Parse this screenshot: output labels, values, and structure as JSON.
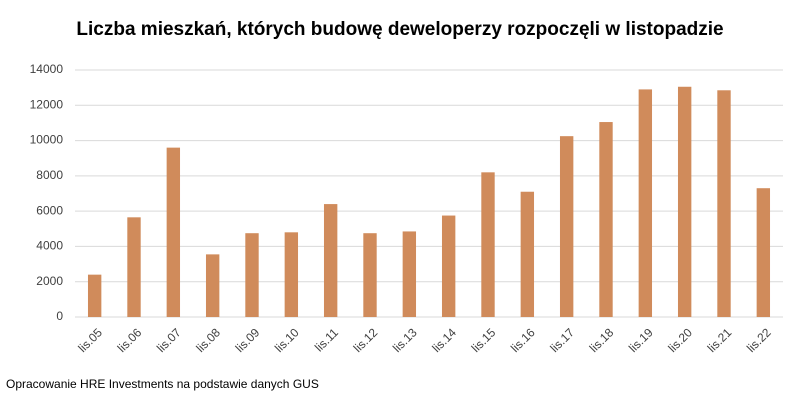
{
  "chart_data": {
    "type": "bar",
    "title": "Liczba mieszkań, których budowę deweloperzy rozpoczęli w listopadzie",
    "categories": [
      "lis.05",
      "lis.06",
      "lis.07",
      "lis.08",
      "lis.09",
      "lis.10",
      "lis.11",
      "lis.12",
      "lis.13",
      "lis.14",
      "lis.15",
      "lis.16",
      "lis.17",
      "lis.18",
      "lis.19",
      "lis.20",
      "lis.21",
      "lis.22"
    ],
    "values": [
      2400,
      5650,
      9600,
      3550,
      4750,
      4800,
      6400,
      4750,
      4850,
      5750,
      8200,
      7100,
      10250,
      11050,
      12900,
      13050,
      12850,
      7300
    ],
    "color": "#d08b5b",
    "ylim": [
      0,
      14000
    ],
    "yticks": [
      0,
      2000,
      4000,
      6000,
      8000,
      10000,
      12000,
      14000
    ],
    "grid": true,
    "source": "Opracowanie HRE Investments na podstawie danych GUS"
  }
}
